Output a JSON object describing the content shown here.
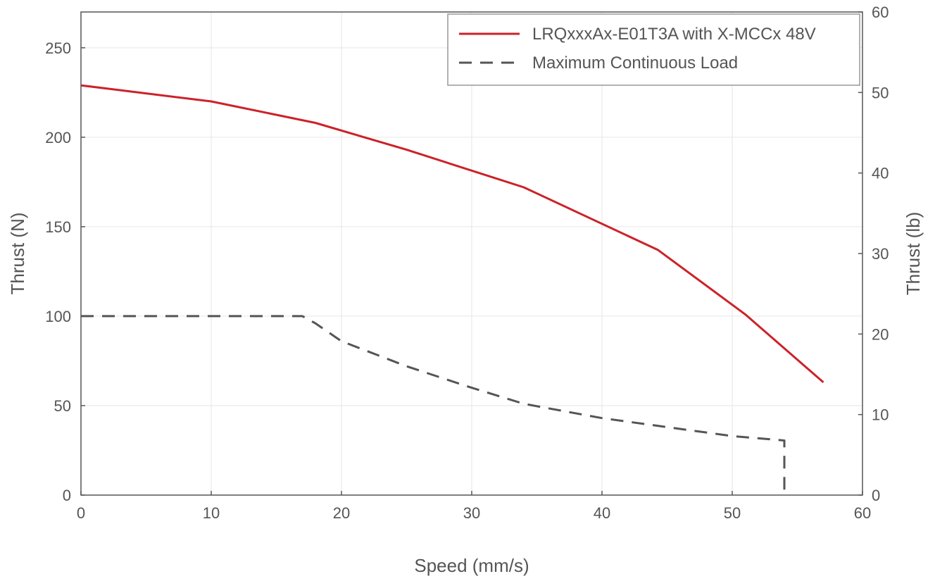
{
  "chart_data": {
    "type": "line",
    "title": "",
    "xlabel": "Speed (mm/s)",
    "ylabel": "Thrust (N)",
    "y2label": "Thrust (lb)",
    "xlim": [
      0,
      60
    ],
    "ylim": [
      0,
      270
    ],
    "y2lim": [
      0,
      60
    ],
    "xticks": [
      0,
      10,
      20,
      30,
      40,
      50,
      60
    ],
    "yticks": [
      0,
      50,
      100,
      150,
      200,
      250
    ],
    "y2ticks": [
      0,
      10,
      20,
      30,
      40,
      50,
      60
    ],
    "grid": true,
    "legend_position": "top-right",
    "series": [
      {
        "name": "LRQxxxAx-E01T3A with X-MCCx 48V",
        "style": "solid",
        "color": "#cc2229",
        "points": [
          [
            0,
            229
          ],
          [
            10,
            220
          ],
          [
            18,
            208
          ],
          [
            25,
            193
          ],
          [
            34,
            172
          ],
          [
            44.3,
            137
          ],
          [
            51,
            101
          ],
          [
            57,
            63
          ]
        ]
      },
      {
        "name": "Maximum Continuous Load",
        "style": "dashed",
        "color": "#555555",
        "points": [
          [
            0,
            100
          ],
          [
            17,
            100
          ],
          [
            18,
            96
          ],
          [
            20,
            86
          ],
          [
            25,
            72
          ],
          [
            30,
            60
          ],
          [
            34,
            51
          ],
          [
            40,
            43
          ],
          [
            45,
            38
          ],
          [
            50,
            33
          ],
          [
            54,
            30.5
          ],
          [
            54,
            0
          ]
        ]
      }
    ]
  },
  "colors": {
    "axis": "#555555",
    "grid": "#e6e6e6",
    "text": "#555555",
    "legend_border": "#999999"
  }
}
